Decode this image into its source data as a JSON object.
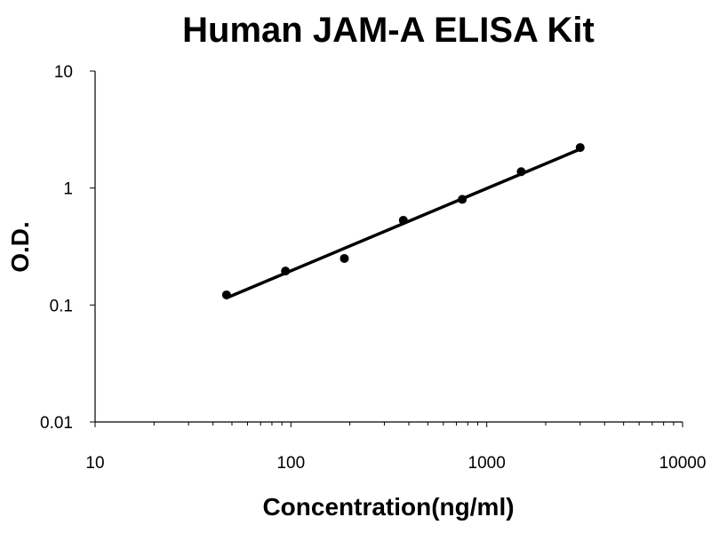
{
  "chart_data": {
    "type": "scatter",
    "title": "Human JAM-A ELISA Kit",
    "xlabel": "Concentration(ng/ml)",
    "ylabel": "O.D.",
    "x_scale": "log",
    "y_scale": "log",
    "xlim": [
      10,
      10000
    ],
    "ylim": [
      0.01,
      10
    ],
    "x_ticks": [
      "10",
      "100",
      "1000",
      "10000"
    ],
    "y_ticks": [
      "10",
      "1",
      "0.1",
      "0.01"
    ],
    "grid": false,
    "legend": "none",
    "series": [
      {
        "x": [
          46.9,
          93.8,
          187.5,
          375,
          750,
          1500,
          3000
        ],
        "y": [
          0.122,
          0.195,
          0.25,
          0.53,
          0.8,
          1.38,
          2.22
        ]
      }
    ],
    "trendline": {
      "type": "power",
      "x": [
        46.9,
        3000
      ],
      "y": [
        0.115,
        2.15
      ]
    }
  }
}
